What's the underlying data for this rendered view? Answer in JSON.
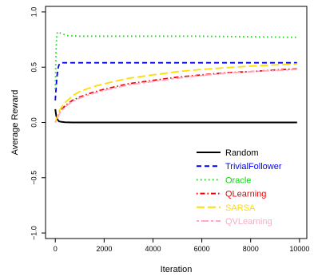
{
  "chart_data": {
    "type": "line",
    "xlabel": "Iteration",
    "ylabel": "Average Reward",
    "xlim": [
      -400,
      10300
    ],
    "ylim": [
      -1.05,
      1.05
    ],
    "x_ticks": [
      0,
      2000,
      4000,
      6000,
      8000,
      10000
    ],
    "x_tick_labels": [
      "0",
      "2000",
      "4000",
      "6000",
      "8000",
      "10000"
    ],
    "y_ticks": [
      -1.0,
      -0.5,
      0.0,
      0.5,
      1.0
    ],
    "y_tick_labels": [
      "−1.0",
      "−0.5",
      "0.0",
      "0.5",
      "1.0"
    ],
    "grid": false,
    "legend_position": "bottom-right",
    "series": [
      {
        "name": "Random",
        "color": "#000000",
        "dash": "solid",
        "x": [
          0,
          40,
          80,
          150,
          250,
          400,
          700,
          1000,
          2000,
          4000,
          6000,
          8000,
          9900
        ],
        "y": [
          0.12,
          0.06,
          0.03,
          0.01,
          0.005,
          0.002,
          0.0,
          0.0,
          0.0,
          0.0,
          0.0,
          0.0,
          0.0
        ]
      },
      {
        "name": "TrivialFollower",
        "color": "#0000ee",
        "dash": "dashed",
        "x": [
          0,
          30,
          60,
          100,
          150,
          200,
          300,
          500,
          1000,
          2000,
          4000,
          6000,
          8000,
          9900
        ],
        "y": [
          0.2,
          0.3,
          0.4,
          0.48,
          0.52,
          0.535,
          0.54,
          0.54,
          0.54,
          0.54,
          0.54,
          0.54,
          0.54,
          0.54
        ]
      },
      {
        "name": "Oracle",
        "color": "#00dd00",
        "dash": "dotted",
        "x": [
          0,
          30,
          60,
          100,
          200,
          300,
          500,
          1000,
          2000,
          4000,
          6000,
          8000,
          9900
        ],
        "y": [
          0.3,
          0.65,
          0.8,
          0.82,
          0.81,
          0.8,
          0.785,
          0.78,
          0.78,
          0.78,
          0.78,
          0.775,
          0.77
        ]
      },
      {
        "name": "QLearning",
        "color": "#ee0000",
        "dash": "dashdot",
        "x": [
          0,
          100,
          200,
          400,
          700,
          1000,
          1500,
          2000,
          3000,
          4000,
          5000,
          6000,
          7000,
          8000,
          9000,
          9900
        ],
        "y": [
          0.0,
          0.05,
          0.1,
          0.15,
          0.2,
          0.23,
          0.27,
          0.3,
          0.35,
          0.38,
          0.41,
          0.43,
          0.45,
          0.46,
          0.475,
          0.485
        ]
      },
      {
        "name": "SARSA",
        "color": "#ffdd00",
        "dash": "longdash",
        "x": [
          0,
          100,
          200,
          400,
          700,
          1000,
          1500,
          2000,
          3000,
          4000,
          5000,
          6000,
          7000,
          8000,
          9000,
          9900
        ],
        "y": [
          0.0,
          0.07,
          0.12,
          0.18,
          0.24,
          0.28,
          0.32,
          0.35,
          0.4,
          0.43,
          0.46,
          0.48,
          0.495,
          0.51,
          0.52,
          0.53
        ]
      },
      {
        "name": "QVLearning",
        "color": "#ffaac0",
        "dash": "twodash",
        "x": [
          0,
          100,
          200,
          400,
          700,
          1000,
          1500,
          2000,
          3000,
          4000,
          5000,
          6000,
          7000,
          8000,
          9000,
          9900
        ],
        "y": [
          0.0,
          0.05,
          0.09,
          0.14,
          0.19,
          0.22,
          0.26,
          0.29,
          0.34,
          0.37,
          0.4,
          0.425,
          0.445,
          0.46,
          0.47,
          0.48
        ]
      }
    ]
  }
}
